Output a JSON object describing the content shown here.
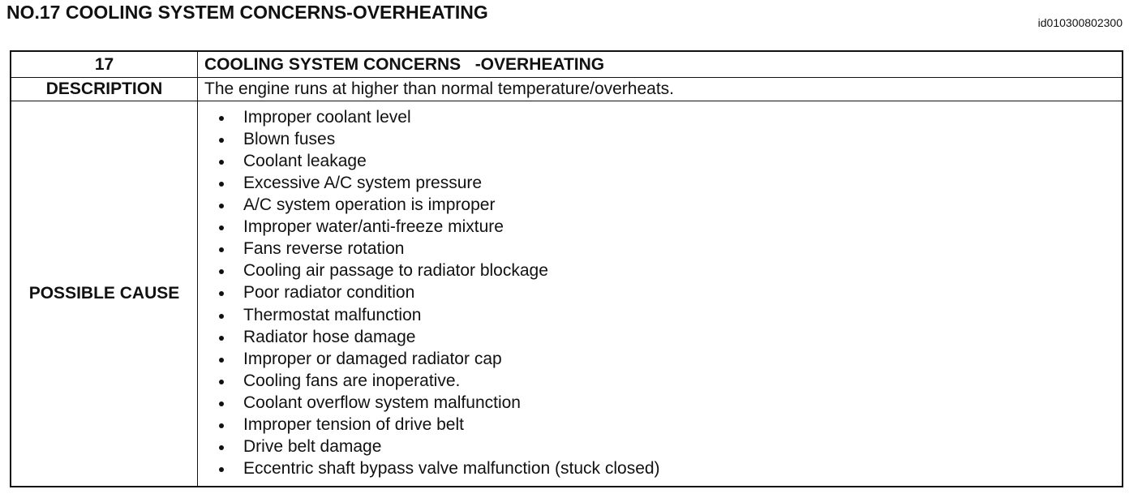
{
  "header": {
    "title": "NO.17 COOLING SYSTEM CONCERNS-OVERHEATING",
    "id": "id010300802300"
  },
  "table": {
    "rows": [
      [
        "17",
        "COOLING SYSTEM CONCERNS   -OVERHEATING"
      ],
      [
        "DESCRIPTION",
        "The engine runs at higher than normal temperature/overheats."
      ]
    ],
    "possible_cause": {
      "label": "POSSIBLE CAUSE",
      "items": [
        "Improper coolant level",
        "Blown fuses",
        "Coolant leakage",
        "Excessive A/C system pressure",
        "A/C system operation is improper",
        "Improper water/anti-freeze mixture",
        "Fans reverse rotation",
        "Cooling air passage to radiator blockage",
        "Poor radiator condition",
        "Thermostat malfunction",
        "Radiator hose damage",
        "Improper or damaged radiator cap",
        "Cooling fans are inoperative.",
        "Coolant overflow system malfunction",
        "Improper tension of drive belt",
        "Drive belt damage",
        "Eccentric shaft bypass valve malfunction (stuck closed)"
      ]
    }
  }
}
